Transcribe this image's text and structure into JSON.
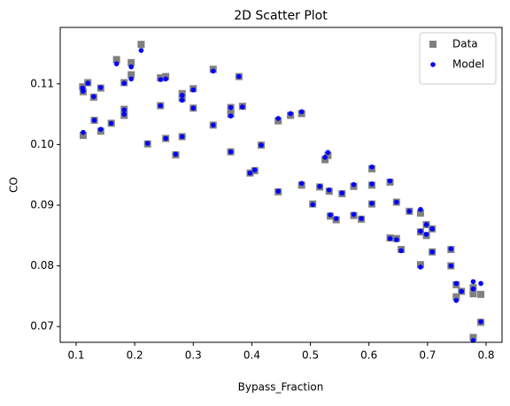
{
  "chart_data": {
    "type": "scatter",
    "title": "2D Scatter Plot",
    "x_label": "Bypass_Fraction",
    "y_label": "CO",
    "x": [
      0.111,
      0.112,
      0.112,
      0.12,
      0.13,
      0.131,
      0.142,
      0.142,
      0.16,
      0.169,
      0.182,
      0.182,
      0.182,
      0.194,
      0.194,
      0.211,
      0.222,
      0.244,
      0.244,
      0.253,
      0.253,
      0.27,
      0.281,
      0.281,
      0.281,
      0.3,
      0.3,
      0.334,
      0.334,
      0.364,
      0.364,
      0.364,
      0.378,
      0.384,
      0.397,
      0.405,
      0.416,
      0.445,
      0.445,
      0.466,
      0.485,
      0.485,
      0.504,
      0.516,
      0.525,
      0.53,
      0.532,
      0.534,
      0.544,
      0.554,
      0.574,
      0.574,
      0.587,
      0.605,
      0.605,
      0.605,
      0.636,
      0.636,
      0.647,
      0.647,
      0.655,
      0.669,
      0.688,
      0.688,
      0.688,
      0.698,
      0.698,
      0.708,
      0.708,
      0.74,
      0.74,
      0.749,
      0.749,
      0.758,
      0.778,
      0.778,
      0.778,
      0.791,
      0.791
    ],
    "series": [
      {
        "name": "Data",
        "color": "#808080",
        "marker": "square",
        "values": [
          0.1095,
          0.1087,
          0.1015,
          0.1102,
          0.1078,
          0.104,
          0.1093,
          0.1022,
          0.1035,
          0.114,
          0.1058,
          0.1102,
          0.1048,
          0.1115,
          0.1135,
          0.1165,
          0.1001,
          0.1064,
          0.111,
          0.1112,
          0.101,
          0.0983,
          0.1084,
          0.1076,
          0.1013,
          0.1092,
          0.106,
          0.1124,
          0.1032,
          0.1061,
          0.105,
          0.0988,
          0.1112,
          0.1063,
          0.0953,
          0.0957,
          0.0999,
          0.1039,
          0.0922,
          0.1048,
          0.1051,
          0.0933,
          0.0902,
          0.093,
          0.0975,
          0.0982,
          0.0923,
          0.0882,
          0.0876,
          0.0919,
          0.0931,
          0.0883,
          0.0877,
          0.096,
          0.0933,
          0.0902,
          0.0938,
          0.0846,
          0.0845,
          0.0905,
          0.0827,
          0.089,
          0.0887,
          0.0856,
          0.0802,
          0.0868,
          0.085,
          0.0861,
          0.0823,
          0.0827,
          0.08,
          0.0769,
          0.0749,
          0.0758,
          0.0764,
          0.0754,
          0.0682,
          0.0753,
          0.0707
        ]
      },
      {
        "name": "Model",
        "color": "#0000ff",
        "marker": "circle",
        "values": [
          0.1093,
          0.1088,
          0.102,
          0.1101,
          0.1079,
          0.104,
          0.1094,
          0.1025,
          0.1035,
          0.1133,
          0.1057,
          0.1101,
          0.105,
          0.1108,
          0.1128,
          0.1155,
          0.1002,
          0.1064,
          0.1107,
          0.1108,
          0.101,
          0.0984,
          0.1081,
          0.1073,
          0.1013,
          0.109,
          0.106,
          0.1121,
          0.1032,
          0.1061,
          0.1047,
          0.0988,
          0.1112,
          0.1062,
          0.0953,
          0.0958,
          0.0999,
          0.1043,
          0.0923,
          0.1051,
          0.1054,
          0.0936,
          0.0901,
          0.0931,
          0.0979,
          0.0987,
          0.0925,
          0.0884,
          0.0878,
          0.092,
          0.0934,
          0.0885,
          0.0878,
          0.0963,
          0.0935,
          0.0903,
          0.094,
          0.0845,
          0.0843,
          0.0905,
          0.0825,
          0.089,
          0.0893,
          0.0857,
          0.0798,
          0.0868,
          0.0852,
          0.0861,
          0.0823,
          0.0828,
          0.08,
          0.0771,
          0.0743,
          0.0758,
          0.0774,
          0.0762,
          0.0677,
          0.0771,
          0.0708
        ]
      }
    ],
    "xlim": [
      0.0728,
      0.8272
    ],
    "ylim": [
      0.0674,
      0.1193
    ],
    "xticks": [
      0.1,
      0.2,
      0.3,
      0.4,
      0.5,
      0.6,
      0.7,
      0.8
    ],
    "yticks": [
      0.07,
      0.08,
      0.09,
      {
        "value": 0.1,
        "label": "0.10"
      },
      0.11
    ],
    "legend": "upper right"
  }
}
